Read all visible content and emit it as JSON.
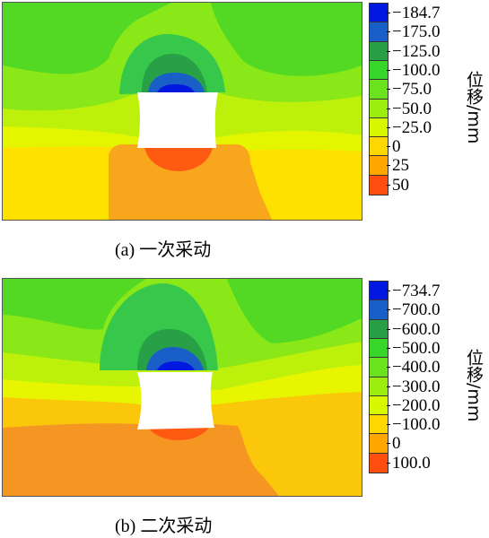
{
  "panels": [
    {
      "caption": "(a)  一次采动",
      "unit_label": "位移/mm",
      "legend": {
        "ticks": [
          "−184.7",
          "−175.0",
          "−125.0",
          "−100.0",
          "−75.0",
          "−50.0",
          "−25.0",
          "0",
          "25",
          "50"
        ],
        "colors": [
          "#0018e0",
          "#1a5fc8",
          "#27a046",
          "#37d72a",
          "#6ae21e",
          "#9ded10",
          "#d8f800",
          "#ffd700",
          "#ffa600",
          "#ff4e0e"
        ]
      }
    },
    {
      "caption": "(b)  二次采动",
      "unit_label": "位移/mm",
      "legend": {
        "ticks": [
          "−734.7",
          "−700.0",
          "−600.0",
          "−500.0",
          "−400.0",
          "−300.0",
          "−200.0",
          "−100.0",
          "0",
          "100.0"
        ],
        "colors": [
          "#0018e0",
          "#1a5fc8",
          "#27a046",
          "#37d72a",
          "#6ae21e",
          "#9ded10",
          "#d8f800",
          "#ffd700",
          "#ffa600",
          "#ff4e0e"
        ]
      }
    }
  ]
}
